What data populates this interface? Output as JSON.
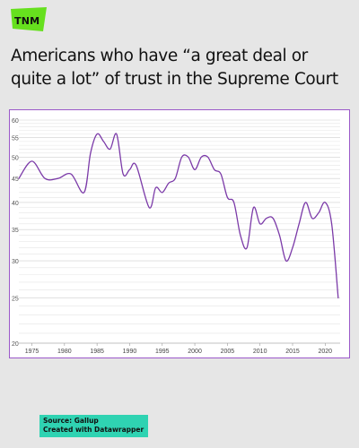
{
  "brand": {
    "logo_text": "TNM",
    "logo_color": "#66e01e"
  },
  "title_line1": "Americans who have “a great deal or",
  "title_line2": "quite a lot” of trust in the Supreme Court",
  "source": {
    "line1": "Source: Gallup",
    "line2": "Created with Datawrapper",
    "bg_color": "#2fd3b2"
  },
  "chart_data": {
    "type": "line",
    "title": "Americans who have “a great deal or quite a lot” of trust in the Supreme Court",
    "xlabel": "",
    "ylabel": "",
    "xlim": [
      1973,
      2022.3
    ],
    "ylim": [
      20,
      60
    ],
    "y_scale": "log",
    "y_ticks": [
      20,
      25,
      30,
      35,
      40,
      45,
      50,
      55,
      60
    ],
    "x_ticks": [
      1975,
      1980,
      1985,
      1990,
      1995,
      2000,
      2005,
      2010,
      2015,
      2020
    ],
    "grid": true,
    "line_color": "#7b3aa8",
    "series": [
      {
        "x": [
          1973,
          1975,
          1977,
          1979,
          1981,
          1983,
          1984,
          1985,
          1986,
          1987,
          1988,
          1989,
          1990,
          1991,
          1993,
          1994,
          1995,
          1996,
          1997,
          1998,
          1999,
          2000,
          2001,
          2002,
          2003,
          2004,
          2005,
          2006,
          2007,
          2008,
          2009,
          2010,
          2011,
          2012,
          2013,
          2014,
          2015,
          2016,
          2017,
          2018,
          2019,
          2020,
          2021,
          2022
        ],
        "y": [
          45,
          49,
          45,
          45,
          46,
          42,
          51,
          56,
          54,
          52,
          56,
          46,
          47,
          48,
          39,
          43,
          42,
          44,
          45,
          50,
          50,
          47,
          50,
          50,
          47,
          46,
          41,
          40,
          34,
          32,
          39,
          36,
          37,
          37,
          34,
          30,
          32,
          36,
          40,
          37,
          38,
          40,
          36,
          25
        ]
      }
    ]
  }
}
